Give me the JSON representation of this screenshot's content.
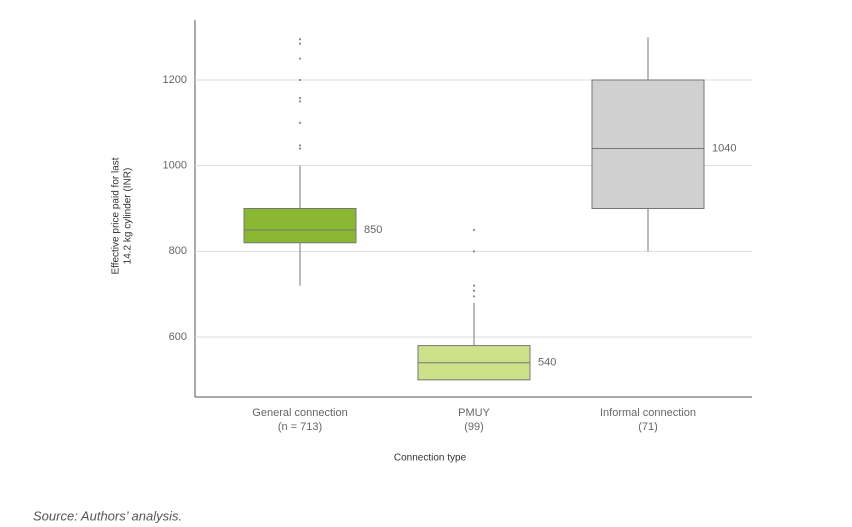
{
  "chart_data": {
    "type": "box",
    "y_label": [
      "Effective price paid for last",
      "14.2 kg cylinder (INR)"
    ],
    "x_label": "Connection type",
    "categories": [
      "General connection",
      "PMUY",
      "Informal connection"
    ],
    "category_sublabels": [
      "(n = 713)",
      "(99)",
      "(71)"
    ],
    "boxes": [
      {
        "name": "General connection",
        "color": "#8ab833",
        "whislo": 720,
        "q1": 820,
        "med": 850,
        "q3": 900,
        "whishi": 1000,
        "fliers": [
          1295,
          1285,
          1250,
          1200,
          1158,
          1150,
          1100,
          1047,
          1040
        ]
      },
      {
        "name": "PMUY",
        "color": "#cde08a",
        "whislo": 500,
        "q1": 500,
        "med": 540,
        "q3": 580,
        "whishi": 680,
        "fliers": [
          850,
          800,
          720,
          708,
          695
        ]
      },
      {
        "name": "Informal connection",
        "color": "#d0d0d0",
        "whislo": 800,
        "q1": 900,
        "med": 1040,
        "q3": 1200,
        "whishi": 1300,
        "fliers": []
      }
    ],
    "ylim": [
      460,
      1340
    ],
    "yticks": [
      600,
      800,
      1000,
      1200
    ],
    "grid": true,
    "source": "Source: Authors’ analysis."
  }
}
